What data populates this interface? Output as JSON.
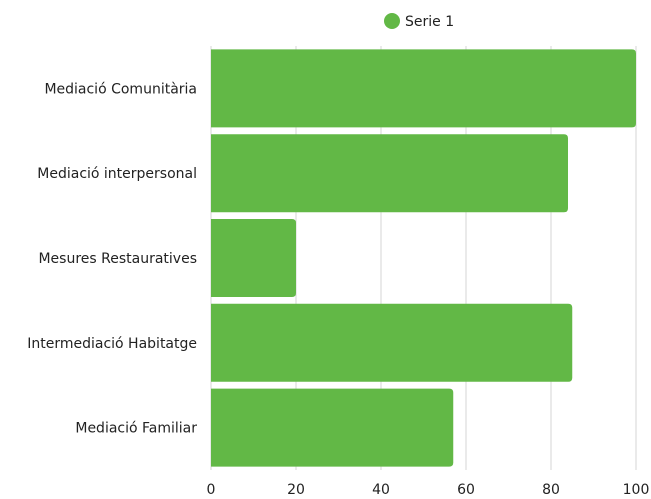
{
  "chart_data": {
    "type": "bar",
    "orientation": "horizontal",
    "categories": [
      "Mediació Comunitària",
      "Mediació interpersonal",
      "Mesures Restauratives",
      "Intermediació Habitatge",
      "Mediació Familiar"
    ],
    "series": [
      {
        "name": "Serie 1",
        "values": [
          100,
          84,
          20,
          85,
          57
        ]
      }
    ],
    "x_ticks": [
      "0",
      "20",
      "40",
      "60",
      "80",
      "100"
    ],
    "xlim": [
      0,
      100
    ],
    "grid": true,
    "legend_position": "top-center",
    "colors": {
      "bar": "#62b846",
      "grid": "#d6d6d6",
      "text": "#222222"
    }
  }
}
